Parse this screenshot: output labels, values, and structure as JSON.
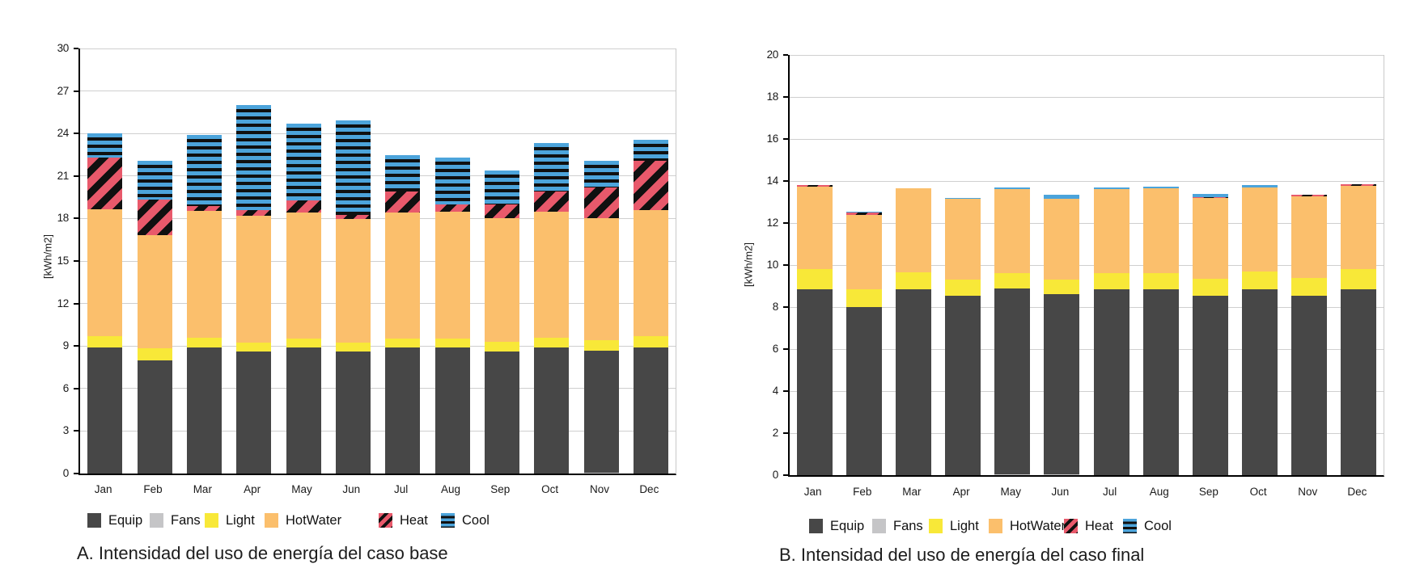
{
  "colors": {
    "equip": "#474747",
    "fans": "#c5c5c7",
    "light": "#f8e838",
    "hotwater": "#fbbf6c",
    "heat": "#e8596b",
    "cool": "#4ca4db",
    "stripe": "#101010",
    "grid": "#cfcfcf",
    "axis": "#000000"
  },
  "chart_data": [
    {
      "type": "bar",
      "stacked": true,
      "caption": "A. Intensidad del uso de energía del caso base",
      "ylabel": "[kWh/m2]",
      "ylim": [
        0,
        30
      ],
      "ystep": 3,
      "grid": true,
      "legend_position": "bottom",
      "categories": [
        "Jan",
        "Feb",
        "Mar",
        "Apr",
        "May",
        "Jun",
        "Jul",
        "Aug",
        "Sep",
        "Oct",
        "Nov",
        "Dec"
      ],
      "series": [
        {
          "name": "Equip",
          "pattern": "solid",
          "values": [
            8.9,
            8.0,
            8.9,
            8.6,
            8.9,
            8.6,
            8.9,
            8.9,
            8.6,
            8.9,
            8.6,
            8.9
          ]
        },
        {
          "name": "Fans",
          "pattern": "solid",
          "values": [
            0,
            0,
            0,
            0,
            0,
            0,
            0,
            0,
            0,
            0,
            0.05,
            0
          ]
        },
        {
          "name": "Light",
          "pattern": "solid",
          "values": [
            0.8,
            0.85,
            0.7,
            0.65,
            0.65,
            0.65,
            0.65,
            0.65,
            0.7,
            0.7,
            0.75,
            0.8
          ]
        },
        {
          "name": "HotWater",
          "pattern": "solid",
          "values": [
            8.95,
            7.95,
            8.95,
            8.95,
            8.85,
            8.7,
            8.9,
            8.95,
            8.7,
            8.9,
            8.6,
            8.9
          ]
        },
        {
          "name": "Heat",
          "pattern": "diagonal-stripes",
          "values": [
            3.65,
            2.55,
            0.35,
            0.4,
            0.9,
            0.3,
            1.45,
            0.5,
            1.0,
            1.4,
            2.2,
            3.5
          ]
        },
        {
          "name": "Cool",
          "pattern": "horizontal-stripes",
          "values": [
            1.7,
            2.75,
            5.0,
            7.4,
            5.4,
            6.65,
            2.6,
            3.3,
            2.4,
            3.4,
            1.9,
            1.45
          ]
        }
      ],
      "totals": [
        24.0,
        22.1,
        23.9,
        26.0,
        24.7,
        24.9,
        22.5,
        22.3,
        21.4,
        23.3,
        22.1,
        23.55
      ]
    },
    {
      "type": "bar",
      "stacked": true,
      "caption": "B. Intensidad del uso de energía del caso final",
      "ylabel": "[kWh/m2]",
      "ylim": [
        0,
        20
      ],
      "ystep": 2,
      "grid": true,
      "legend_position": "bottom",
      "categories": [
        "Jan",
        "Feb",
        "Mar",
        "Apr",
        "May",
        "Jun",
        "Jul",
        "Aug",
        "Sep",
        "Oct",
        "Nov",
        "Dec"
      ],
      "series": [
        {
          "name": "Equip",
          "pattern": "solid",
          "values": [
            8.85,
            8.0,
            8.85,
            8.55,
            8.85,
            8.55,
            8.85,
            8.85,
            8.55,
            8.85,
            8.55,
            8.85
          ]
        },
        {
          "name": "Fans",
          "pattern": "solid",
          "values": [
            0,
            0,
            0,
            0,
            0.05,
            0.05,
            0,
            0,
            0,
            0,
            0,
            0
          ]
        },
        {
          "name": "Light",
          "pattern": "solid",
          "values": [
            0.95,
            0.85,
            0.8,
            0.75,
            0.7,
            0.7,
            0.75,
            0.75,
            0.8,
            0.85,
            0.85,
            0.95
          ]
        },
        {
          "name": "HotWater",
          "pattern": "solid",
          "values": [
            3.95,
            3.55,
            4.0,
            3.85,
            4.0,
            3.85,
            4.0,
            4.05,
            3.85,
            4.0,
            3.88,
            3.98
          ]
        },
        {
          "name": "Heat",
          "pattern": "diagonal-stripes",
          "values": [
            0.05,
            0.1,
            0,
            0,
            0,
            0,
            0,
            0,
            0.05,
            0,
            0.05,
            0.07
          ]
        },
        {
          "name": "Cool",
          "pattern": "horizontal-stripes",
          "values": [
            0,
            0.05,
            0,
            0.05,
            0.1,
            0.2,
            0.1,
            0.07,
            0.15,
            0.12,
            0,
            0
          ]
        }
      ],
      "totals": [
        13.8,
        12.55,
        13.65,
        13.2,
        13.7,
        13.35,
        13.7,
        13.72,
        13.4,
        13.82,
        13.33,
        13.85
      ]
    }
  ]
}
